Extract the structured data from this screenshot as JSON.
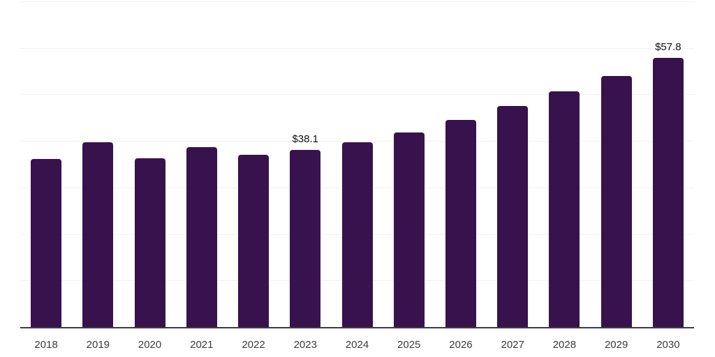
{
  "chart_data": {
    "type": "bar",
    "title": "",
    "xlabel": "",
    "ylabel": "",
    "categories": [
      "2018",
      "2019",
      "2020",
      "2021",
      "2022",
      "2023",
      "2024",
      "2025",
      "2026",
      "2027",
      "2028",
      "2029",
      "2030"
    ],
    "values": [
      36.1,
      39.7,
      36.3,
      38.7,
      37.0,
      38.1,
      39.7,
      41.8,
      44.5,
      47.5,
      50.6,
      53.9,
      57.8
    ],
    "data_labels": [
      "",
      "",
      "",
      "",
      "",
      "$38.1",
      "",
      "",
      "",
      "",
      "",
      "",
      "$57.8"
    ],
    "ylim": [
      0,
      70
    ],
    "grid_interval": 10,
    "grid": "horizontal-only",
    "legend_position": "none",
    "currency_prefix": "$",
    "colors": {
      "bar": "#38124c",
      "gridline": "#f1f1f1",
      "axis_line": "#3d3d3d",
      "tick_label": "#3b3b3b",
      "data_label": "#111111",
      "background": "#ffffff"
    }
  }
}
